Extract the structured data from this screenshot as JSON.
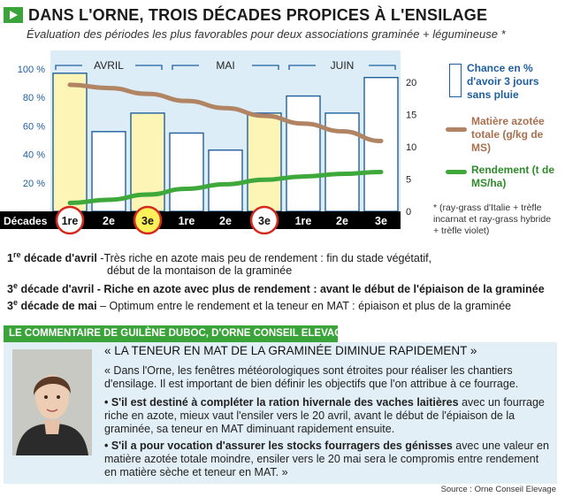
{
  "title": "DANS L'ORNE, TROIS DÉCADES PROPICES À L'ENSILAGE",
  "subtitle": "Évaluation des périodes les plus favorables pour deux associations graminée + légumineuse *",
  "chart_data": {
    "type": "bar",
    "months": [
      "AVRIL",
      "MAI",
      "JUIN"
    ],
    "row_label": "Décades",
    "categories": [
      "1re",
      "2e",
      "3e",
      "1re",
      "2e",
      "3e",
      "1re",
      "2e",
      "3e"
    ],
    "highlighted_index": [
      0,
      2,
      5
    ],
    "left_axis": {
      "ticks": [
        "20 %",
        "40 %",
        "60 %",
        "80 %",
        "100 %"
      ],
      "tick_values": [
        20,
        40,
        60,
        80,
        100
      ],
      "range": [
        0,
        100
      ]
    },
    "right_axis": {
      "ticks": [
        "0",
        "5",
        "10",
        "15",
        "20"
      ],
      "tick_values": [
        0,
        5,
        10,
        15,
        20
      ],
      "range": [
        0,
        20
      ]
    },
    "series": [
      {
        "name": "Chance en % d'avoir 3 jours sans pluie",
        "axis": "left",
        "type": "bar",
        "values": [
          97,
          56,
          69,
          55,
          43,
          69,
          81,
          69,
          94
        ]
      },
      {
        "name": "Matière azotée totale (g/kg de MS)",
        "axis": "right",
        "type": "line",
        "values": [
          19.6,
          19.1,
          18.2,
          17.1,
          16.0,
          14.8,
          13.6,
          12.4,
          10.9
        ]
      },
      {
        "name": "Rendement (t de MS/ha)",
        "axis": "right",
        "type": "line",
        "values": [
          1.3,
          1.8,
          2.6,
          3.5,
          4.2,
          4.9,
          5.4,
          5.8,
          6.1
        ]
      }
    ],
    "colors": {
      "bar": "#ffffff",
      "bar_highlight": "#fdf5b5",
      "bar_stroke": "#1f5fa0",
      "panel": "#dcedf7",
      "mat": "#b18463",
      "rend": "#3ea83a",
      "axis_band": "#000000",
      "circle": "#d42a1e",
      "circle_fill_3e": "#fdf15a"
    },
    "note": "* (ray-grass d'Italie + trèfle incarnat et ray-grass hybride + trèfle violet)"
  },
  "legend": {
    "chance": "Chance en % d'avoir 3 jours sans pluie",
    "mat": "Matière azotée totale (g/kg de MS)",
    "rend": "Rendement (t de MS/ha)"
  },
  "definitions": [
    {
      "num": "1",
      "sup": "re",
      "label": " décade d'avril",
      "text": " -Très riche en azote mais peu de rendement : fin du stade végétatif,",
      "text2": "début de la montaison de la graminée"
    },
    {
      "num": "3",
      "sup": "e",
      "label": " décade d'avril",
      "text": " - Riche en azote avec plus de rendement : avant le début de l'épiaison de la graminée",
      "text2": ""
    },
    {
      "num": "3",
      "sup": "e",
      "label": " décade de mai",
      "text": " – Optimum entre le rendement et la teneur en MAT : épiaison et plus de la graminée",
      "text2": ""
    }
  ],
  "comment": {
    "banner": "LE COMMENTAIRE DE GUILÈNE DUBOC, D'ORNE CONSEIL ELEVAGE",
    "quote_title": "« LA TENEUR EN MAT DE LA GRAMINÉE DIMINUE RAPIDEMENT »",
    "p1": "« Dans l'Orne, les fenêtres météorologiques sont étroites pour réaliser les chantiers d'ensilage. Il est important de bien définir les objectifs que l'on attribue à ce fourrage.",
    "p2_bold": "• S'il est destiné à compléter la ration hivernale des vaches laitières",
    "p2_rest": " avec un fourrage riche en azote, mieux vaut l'ensiler vers le 20 avril, avant le début de l'épiaison de la graminée, sa teneur en MAT diminuant rapidement ensuite.",
    "p3_bold": "• S'il a pour vocation d'assurer les stocks fourragers des génisses",
    "p3_rest": " avec une valeur en matière azotée totale moindre, ensiler vers le 20 mai sera le compromis entre rendement en matière sèche et teneur en MAT. »"
  },
  "source": "Source : Orne Conseil Elevage"
}
